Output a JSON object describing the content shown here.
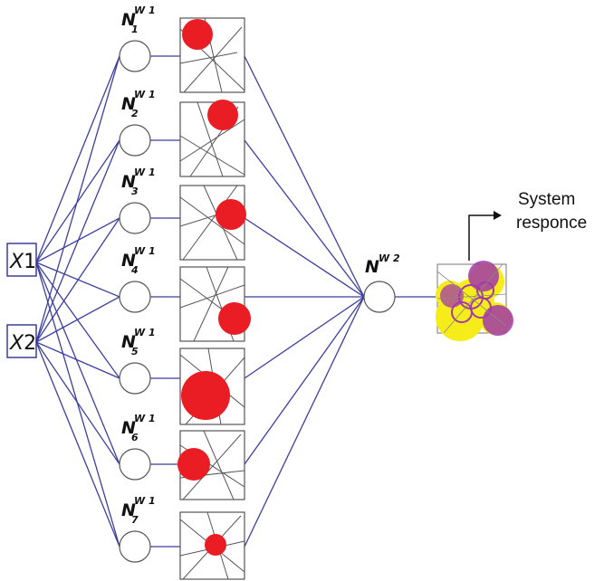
{
  "inputs": [
    {
      "label_main": "X",
      "label_index": "1"
    },
    {
      "label_main": "X",
      "label_index": "2"
    }
  ],
  "hidden_layer": {
    "neurons": [
      {
        "label_main": "N",
        "superscript": "W 1",
        "subscript": "1"
      },
      {
        "label_main": "N",
        "superscript": "W 1",
        "subscript": "2"
      },
      {
        "label_main": "N",
        "superscript": "W 1",
        "subscript": "3"
      },
      {
        "label_main": "N",
        "superscript": "W 1",
        "subscript": "4"
      },
      {
        "label_main": "N",
        "superscript": "W 1",
        "subscript": "5"
      },
      {
        "label_main": "N",
        "superscript": "W 1",
        "subscript": "6"
      },
      {
        "label_main": "N",
        "superscript": "W 1",
        "subscript": "7"
      }
    ]
  },
  "output_neuron": {
    "label_main": "N",
    "superscript": "W 2"
  },
  "response": {
    "line1": "System",
    "line2": "responce"
  },
  "colors": {
    "connection": "#3b3f9e",
    "activation_blob": "#ea1c24",
    "output_yellow": "#f5ec1a",
    "output_purple": "#a23aa8"
  }
}
